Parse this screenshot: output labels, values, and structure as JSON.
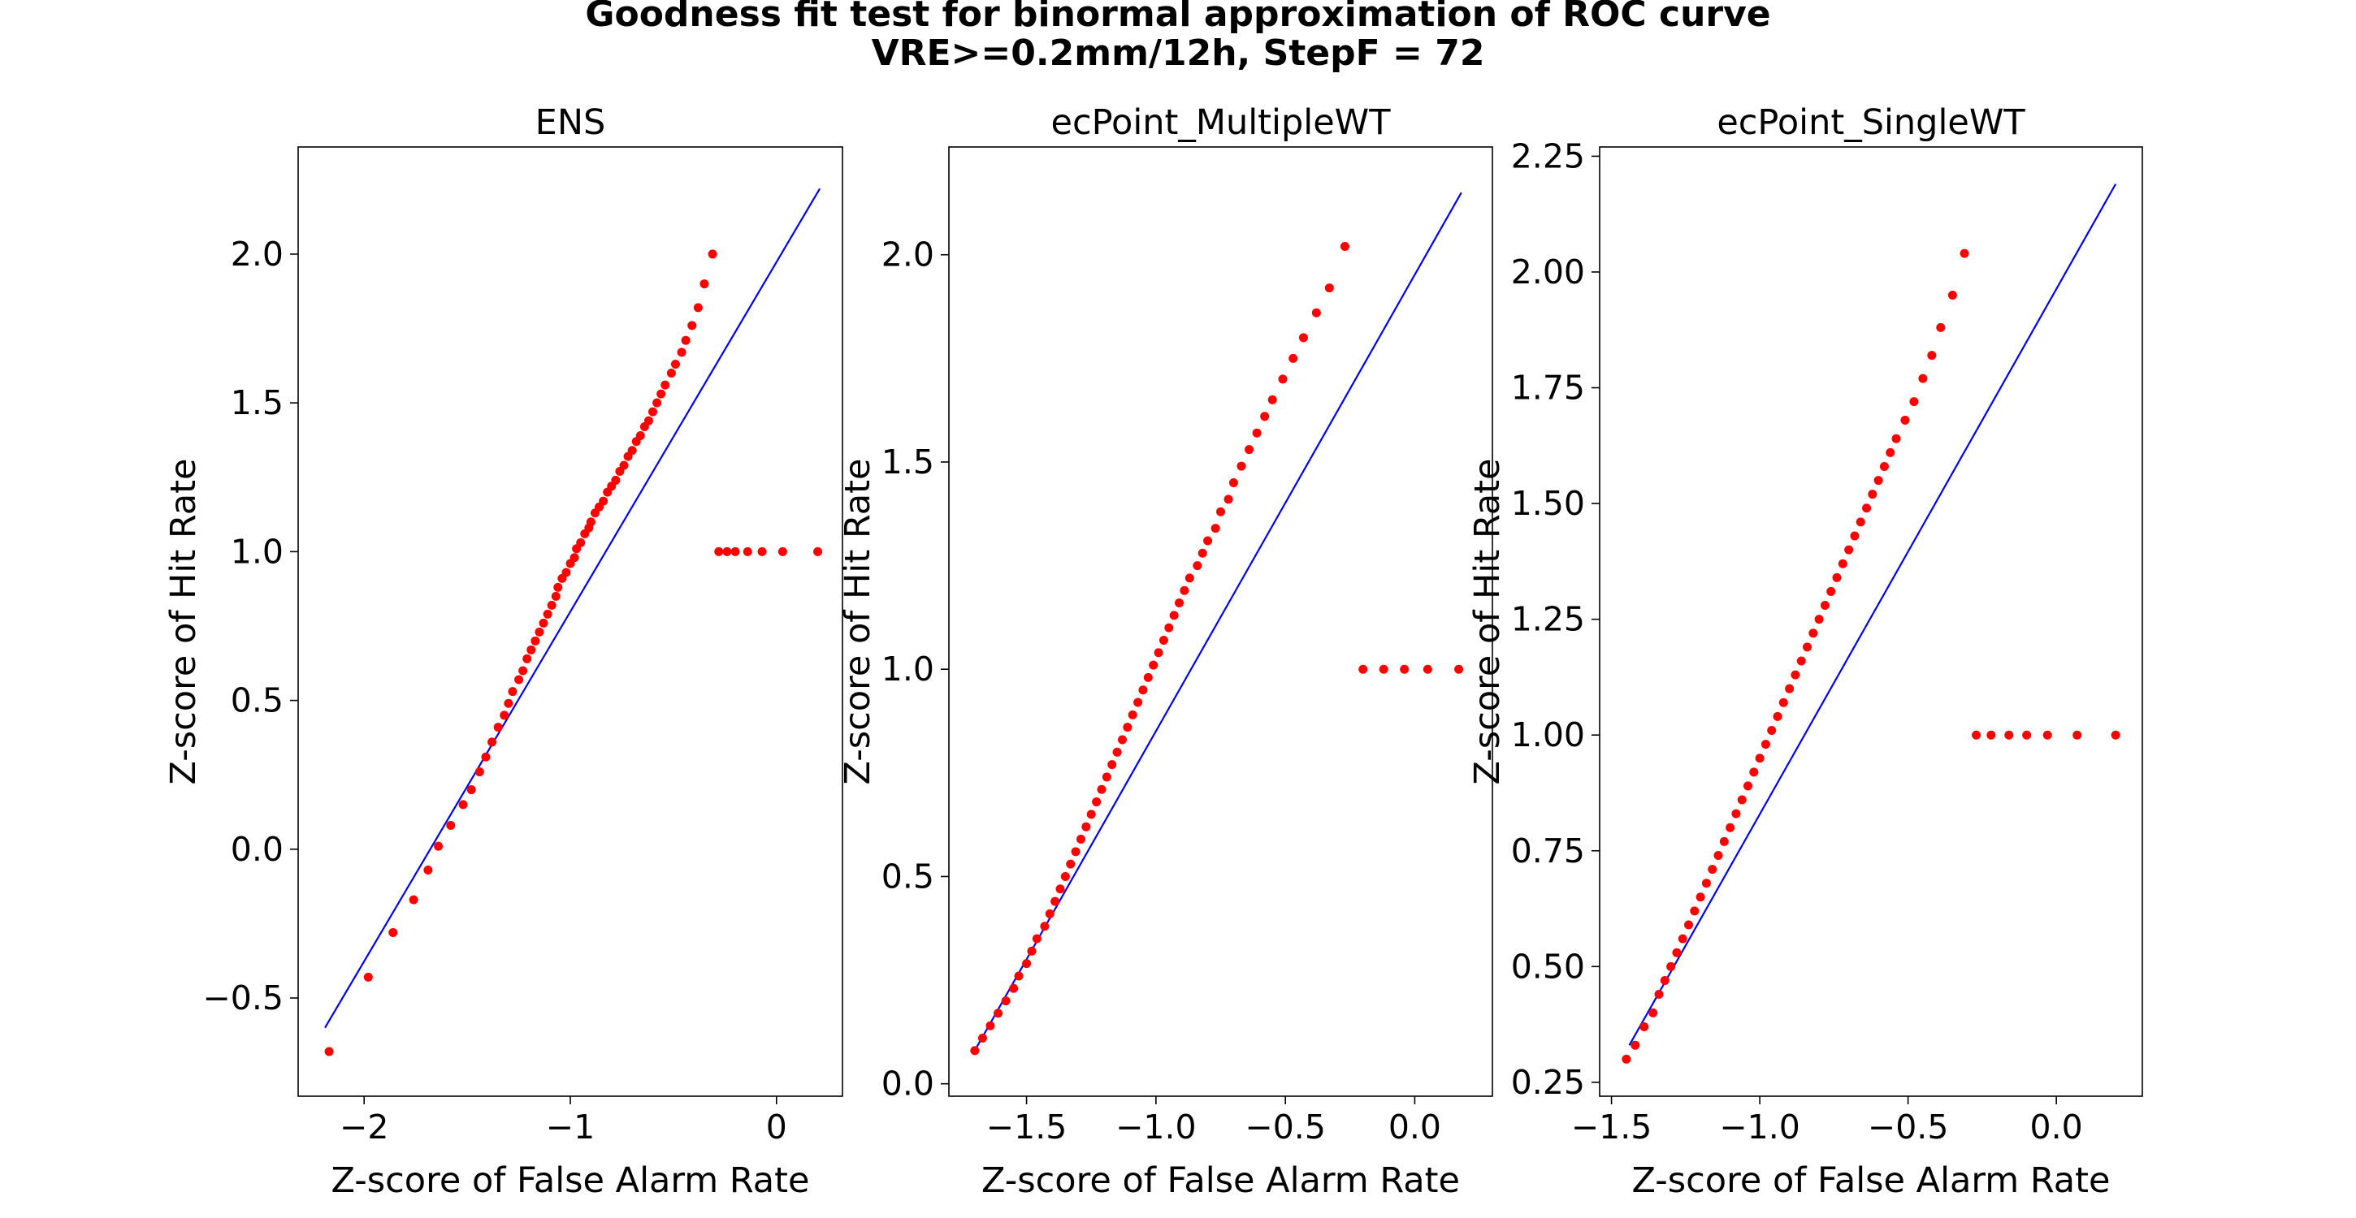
{
  "figure": {
    "title_line1": "Goodness fit test for binormal approximation of ROC curve",
    "title_line2": "VRE>=0.2mm/12h, StepF = 72"
  },
  "chart_data": [
    {
      "type": "scatter",
      "title": "ENS",
      "xlabel": "Z-score of False Alarm Rate",
      "ylabel": "Z-score of Hit Rate",
      "xlim": [
        -2.32,
        0.32
      ],
      "ylim": [
        -0.83,
        2.36
      ],
      "xticks": [
        -2,
        -1,
        0
      ],
      "xtick_labels": [
        "−2",
        "−1",
        "0"
      ],
      "yticks": [
        -0.5,
        0.0,
        0.5,
        1.0,
        1.5,
        2.0
      ],
      "ytick_labels": [
        "−0.5",
        "0.0",
        "0.5",
        "1.0",
        "1.5",
        "2.0"
      ],
      "series": [
        {
          "kind": "points",
          "color": "#ff0000",
          "x": [
            -2.17,
            -1.98,
            -1.86,
            -1.76,
            -1.69,
            -1.64,
            -1.58,
            -1.52,
            -1.48,
            -1.44,
            -1.41,
            -1.38,
            -1.35,
            -1.32,
            -1.3,
            -1.28,
            -1.25,
            -1.23,
            -1.21,
            -1.19,
            -1.17,
            -1.15,
            -1.13,
            -1.11,
            -1.09,
            -1.07,
            -1.06,
            -1.04,
            -1.02,
            -1.0,
            -0.98,
            -0.97,
            -0.95,
            -0.93,
            -0.91,
            -0.9,
            -0.88,
            -0.86,
            -0.84,
            -0.82,
            -0.8,
            -0.78,
            -0.76,
            -0.74,
            -0.72,
            -0.7,
            -0.68,
            -0.66,
            -0.64,
            -0.62,
            -0.6,
            -0.58,
            -0.56,
            -0.54,
            -0.51,
            -0.49,
            -0.46,
            -0.44,
            -0.41,
            -0.38,
            -0.35,
            -0.31,
            -0.28,
            -0.24,
            -0.2,
            -0.14,
            -0.07,
            0.03,
            0.2
          ],
          "y": [
            -0.68,
            -0.43,
            -0.28,
            -0.17,
            -0.07,
            0.01,
            0.08,
            0.15,
            0.2,
            0.26,
            0.31,
            0.36,
            0.41,
            0.45,
            0.49,
            0.53,
            0.57,
            0.6,
            0.64,
            0.67,
            0.7,
            0.73,
            0.76,
            0.79,
            0.82,
            0.85,
            0.88,
            0.91,
            0.93,
            0.96,
            0.98,
            1.01,
            1.03,
            1.06,
            1.08,
            1.1,
            1.13,
            1.15,
            1.17,
            1.2,
            1.22,
            1.24,
            1.27,
            1.29,
            1.32,
            1.34,
            1.37,
            1.39,
            1.42,
            1.44,
            1.47,
            1.5,
            1.53,
            1.56,
            1.6,
            1.63,
            1.67,
            1.71,
            1.76,
            1.82,
            1.9,
            2.0,
            1.0,
            1.0,
            1.0,
            1.0,
            1.0,
            1.0,
            1.0
          ]
        },
        {
          "kind": "line",
          "color": "#0000ff",
          "x": [
            -2.19,
            0.21
          ],
          "y": [
            -0.6,
            2.22
          ]
        }
      ]
    },
    {
      "type": "scatter",
      "title": "ecPoint_MultipleWT",
      "xlabel": "Z-score of False Alarm Rate",
      "ylabel": "Z-score of Hit Rate",
      "xlim": [
        -1.8,
        0.3
      ],
      "ylim": [
        -0.03,
        2.26
      ],
      "xticks": [
        -1.5,
        -1.0,
        -0.5,
        0.0
      ],
      "xtick_labels": [
        "−1.5",
        "−1.0",
        "−0.5",
        "0.0"
      ],
      "yticks": [
        0.0,
        0.5,
        1.0,
        1.5,
        2.0
      ],
      "ytick_labels": [
        "0.0",
        "0.5",
        "1.0",
        "1.5",
        "2.0"
      ],
      "series": [
        {
          "kind": "points",
          "color": "#ff0000",
          "x": [
            -1.7,
            -1.67,
            -1.64,
            -1.61,
            -1.58,
            -1.55,
            -1.53,
            -1.5,
            -1.48,
            -1.46,
            -1.43,
            -1.41,
            -1.39,
            -1.37,
            -1.35,
            -1.33,
            -1.31,
            -1.29,
            -1.27,
            -1.25,
            -1.23,
            -1.21,
            -1.19,
            -1.17,
            -1.15,
            -1.13,
            -1.11,
            -1.09,
            -1.07,
            -1.05,
            -1.03,
            -1.01,
            -0.99,
            -0.97,
            -0.95,
            -0.93,
            -0.91,
            -0.89,
            -0.87,
            -0.84,
            -0.82,
            -0.8,
            -0.77,
            -0.75,
            -0.72,
            -0.7,
            -0.67,
            -0.64,
            -0.61,
            -0.58,
            -0.55,
            -0.51,
            -0.47,
            -0.43,
            -0.38,
            -0.33,
            -0.27,
            -0.2,
            -0.12,
            -0.04,
            0.05,
            0.17
          ],
          "y": [
            0.08,
            0.11,
            0.14,
            0.17,
            0.2,
            0.23,
            0.26,
            0.29,
            0.32,
            0.35,
            0.38,
            0.41,
            0.44,
            0.47,
            0.5,
            0.53,
            0.56,
            0.59,
            0.62,
            0.65,
            0.68,
            0.71,
            0.74,
            0.77,
            0.8,
            0.83,
            0.86,
            0.89,
            0.92,
            0.95,
            0.98,
            1.01,
            1.04,
            1.07,
            1.1,
            1.13,
            1.16,
            1.19,
            1.22,
            1.25,
            1.28,
            1.31,
            1.34,
            1.38,
            1.41,
            1.45,
            1.49,
            1.53,
            1.57,
            1.61,
            1.65,
            1.7,
            1.75,
            1.8,
            1.86,
            1.92,
            2.02,
            1.0,
            1.0,
            1.0,
            1.0,
            1.0
          ]
        },
        {
          "kind": "line",
          "color": "#0000ff",
          "x": [
            -1.7,
            0.18
          ],
          "y": [
            0.08,
            2.15
          ]
        }
      ]
    },
    {
      "type": "scatter",
      "title": "ecPoint_SingleWT",
      "xlabel": "Z-score of False Alarm Rate",
      "ylabel": "Z-score of Hit Rate",
      "xlim": [
        -1.54,
        0.29
      ],
      "ylim": [
        0.22,
        2.27
      ],
      "xticks": [
        -1.5,
        -1.0,
        -0.5,
        0.0
      ],
      "xtick_labels": [
        "−1.5",
        "−1.0",
        "−0.5",
        "0.0"
      ],
      "yticks": [
        0.25,
        0.5,
        0.75,
        1.0,
        1.25,
        1.5,
        1.75,
        2.0,
        2.25
      ],
      "ytick_labels": [
        "0.25",
        "0.50",
        "0.75",
        "1.00",
        "1.25",
        "1.50",
        "1.75",
        "2.00",
        "2.25"
      ],
      "series": [
        {
          "kind": "points",
          "color": "#ff0000",
          "x": [
            -1.45,
            -1.42,
            -1.39,
            -1.36,
            -1.34,
            -1.32,
            -1.3,
            -1.28,
            -1.26,
            -1.24,
            -1.22,
            -1.2,
            -1.18,
            -1.16,
            -1.14,
            -1.12,
            -1.1,
            -1.08,
            -1.06,
            -1.04,
            -1.02,
            -1.0,
            -0.98,
            -0.96,
            -0.94,
            -0.92,
            -0.9,
            -0.88,
            -0.86,
            -0.84,
            -0.82,
            -0.8,
            -0.78,
            -0.76,
            -0.74,
            -0.72,
            -0.7,
            -0.68,
            -0.66,
            -0.64,
            -0.62,
            -0.6,
            -0.58,
            -0.56,
            -0.54,
            -0.51,
            -0.48,
            -0.45,
            -0.42,
            -0.39,
            -0.35,
            -0.31,
            -0.27,
            -0.22,
            -0.16,
            -0.1,
            -0.03,
            0.07,
            0.2
          ],
          "y": [
            0.3,
            0.33,
            0.37,
            0.4,
            0.44,
            0.47,
            0.5,
            0.53,
            0.56,
            0.59,
            0.62,
            0.65,
            0.68,
            0.71,
            0.74,
            0.77,
            0.8,
            0.83,
            0.86,
            0.89,
            0.92,
            0.95,
            0.98,
            1.01,
            1.04,
            1.07,
            1.1,
            1.13,
            1.16,
            1.19,
            1.22,
            1.25,
            1.28,
            1.31,
            1.34,
            1.37,
            1.4,
            1.43,
            1.46,
            1.49,
            1.52,
            1.55,
            1.58,
            1.61,
            1.64,
            1.68,
            1.72,
            1.77,
            1.82,
            1.88,
            1.95,
            2.04,
            1.0,
            1.0,
            1.0,
            1.0,
            1.0,
            1.0,
            1.0
          ]
        },
        {
          "kind": "line",
          "color": "#0000ff",
          "x": [
            -1.44,
            0.2
          ],
          "y": [
            0.33,
            2.19
          ]
        }
      ]
    }
  ]
}
